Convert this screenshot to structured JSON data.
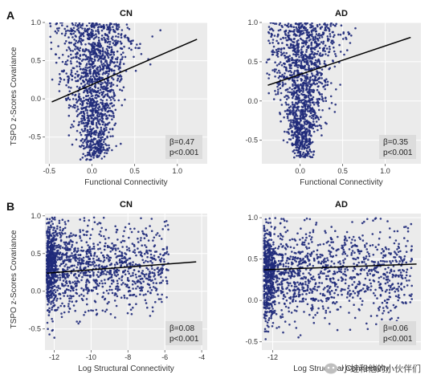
{
  "panel_letters": [
    "A",
    "B"
  ],
  "shared_ylabel": "TSPO z-Scores Covariance",
  "watermark": {
    "text": "小蛙和他的小伙伴们",
    "icon": "wechat-bubble-icon"
  },
  "colors": {
    "point": "#1f2a7a",
    "line": "#000000",
    "panel_bg": "#ebebeb",
    "grid": "#ffffff",
    "stat_box": "#dcdcdc"
  },
  "chart_data": [
    {
      "type": "scatter",
      "title": "CN",
      "xlabel": "Functional Connectivity",
      "ylabel": "TSPO z-Scores Covariance",
      "xlim": [
        -0.55,
        1.35
      ],
      "ylim": [
        -0.85,
        1.0
      ],
      "xticks": [
        -0.5,
        0.0,
        0.5,
        1.0
      ],
      "xtick_labels": [
        "-0.5",
        "0.0",
        "0.5",
        "1.0"
      ],
      "yticks": [
        -0.5,
        0.0,
        0.5,
        1.0
      ],
      "ytick_labels": [
        "-0.5",
        "0.0",
        "0.5",
        "1.0"
      ],
      "grid": true,
      "fit_line": {
        "x": [
          -0.47,
          1.23
        ],
        "y": [
          -0.04,
          0.78
        ]
      },
      "annotation": {
        "beta": "β=0.47",
        "p": "p<0.001",
        "position": "bottom-right"
      },
      "point_cloud": {
        "x_center": 0.03,
        "x_spread": 0.18,
        "y_min": -0.8,
        "y_max": 1.0,
        "n": 1400,
        "seed": 11,
        "shape": "wedge-right"
      }
    },
    {
      "type": "scatter",
      "title": "AD",
      "xlabel": "Functional Connectivity",
      "ylabel": "",
      "xlim": [
        -0.45,
        1.42
      ],
      "ylim": [
        -0.8,
        1.0
      ],
      "xticks": [
        0.0,
        0.5,
        1.0
      ],
      "xtick_labels": [
        "0.0",
        "0.5",
        "1.0"
      ],
      "yticks": [
        -0.5,
        0.0,
        0.5,
        1.0
      ],
      "ytick_labels": [
        "-0.5",
        "0.0",
        "0.5",
        "1.0"
      ],
      "grid": true,
      "fit_line": {
        "x": [
          -0.38,
          1.3
        ],
        "y": [
          0.2,
          0.81
        ]
      },
      "annotation": {
        "beta": "β=0.35",
        "p": "p<0.001",
        "position": "bottom-right"
      },
      "point_cloud": {
        "x_center": 0.03,
        "x_spread": 0.17,
        "y_min": -0.72,
        "y_max": 1.0,
        "n": 1400,
        "seed": 23,
        "shape": "wedge-right"
      }
    },
    {
      "type": "scatter",
      "title": "CN",
      "xlabel": "Log Structural Connectivity",
      "ylabel": "TSPO z-Scores Covariance",
      "xlim": [
        -12.5,
        -3.7
      ],
      "ylim": [
        -0.78,
        1.03
      ],
      "xticks": [
        -12,
        -10,
        -8,
        -6,
        -4
      ],
      "xtick_labels": [
        "-12",
        "-10",
        "-8",
        "-6",
        "-4"
      ],
      "yticks": [
        -0.5,
        0.0,
        0.5,
        1.0
      ],
      "ytick_labels": [
        "-0.5",
        "0.0",
        "0.5",
        "1.0"
      ],
      "grid": true,
      "fit_line": {
        "x": [
          -12.4,
          -4.3
        ],
        "y": [
          0.24,
          0.39
        ]
      },
      "annotation": {
        "beta": "β=0.08",
        "p": "p<0.001",
        "position": "bottom-right"
      },
      "point_cloud": {
        "x_min": -12.4,
        "x_max": -5.8,
        "y_min": -0.75,
        "y_max": 0.98,
        "n": 1500,
        "seed": 37,
        "shape": "band-left-dense"
      }
    },
    {
      "type": "scatter",
      "title": "AD",
      "xlabel": "Log Structural Connectivity",
      "ylabel": "",
      "xlim": [
        -12.5,
        -5.2
      ],
      "ylim": [
        -0.6,
        1.05
      ],
      "xticks": [
        -12
      ],
      "xtick_labels": [
        "-12"
      ],
      "yticks": [
        -0.5,
        0.0,
        0.5,
        1.0
      ],
      "ytick_labels": [
        "-0.5",
        "0.0",
        "0.5",
        "1.0"
      ],
      "grid": true,
      "fit_line": {
        "x": [
          -12.4,
          -5.4
        ],
        "y": [
          0.37,
          0.44
        ]
      },
      "annotation": {
        "beta": "β=0.06",
        "p": "p<0.001",
        "position": "bottom-right"
      },
      "point_cloud": {
        "x_min": -12.4,
        "x_max": -5.6,
        "y_min": -0.55,
        "y_max": 1.0,
        "n": 1500,
        "seed": 51,
        "shape": "band-left-dense"
      }
    }
  ]
}
